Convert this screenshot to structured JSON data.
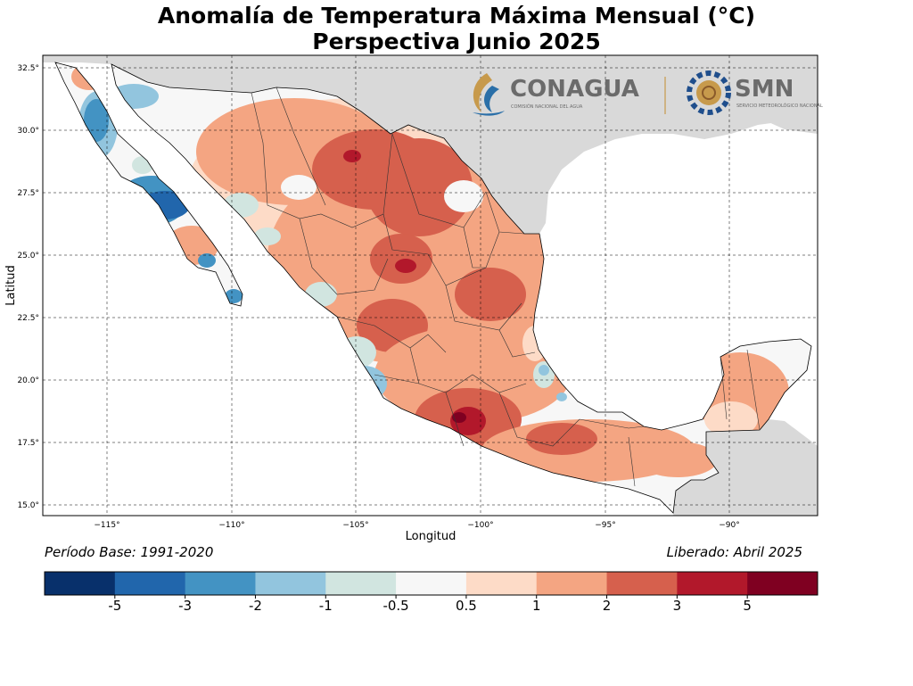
{
  "title": {
    "line1": "Anomalía de Temperatura Máxima Mensual (°C)",
    "line2": "Perspectiva Junio 2025"
  },
  "axes": {
    "xlabel": "Longitud",
    "ylabel": "Latitud",
    "xticks": [
      "−115°",
      "−110°",
      "−105°",
      "−100°",
      "−95°",
      "−90°"
    ],
    "yticks": [
      "32.5°",
      "30.0°",
      "27.5°",
      "25.0°",
      "22.5°",
      "20.0°",
      "17.5°",
      "15.0°"
    ],
    "lon_range": [
      -118.5,
      -86.5
    ],
    "lat_range": [
      14.5,
      32.7
    ]
  },
  "footer": {
    "base_period": "Período Base: 1991-2020",
    "released": "Liberado: Abril 2025"
  },
  "logos": {
    "conagua": "CONAGUA",
    "conagua_sub": "COMISIÓN NACIONAL DEL AGUA",
    "smn": "SMN",
    "smn_sub": "SERVICIO METEOROLÓGICO NACIONAL"
  },
  "colorbar": {
    "colors": [
      "#08306b",
      "#2166ac",
      "#4393c3",
      "#92c5de",
      "#d1e5e0",
      "#f7f7f7",
      "#fddbc7",
      "#f4a582",
      "#d6604d",
      "#b2182b",
      "#7f0021"
    ],
    "labels": [
      "-5",
      "-3",
      "-2",
      "-1",
      "-0.5",
      "0.5",
      "1",
      "2",
      "3",
      "5"
    ]
  },
  "map_colors": {
    "land_other": "#d9d9d9",
    "ocean": "#ffffff",
    "border": "#000000"
  }
}
